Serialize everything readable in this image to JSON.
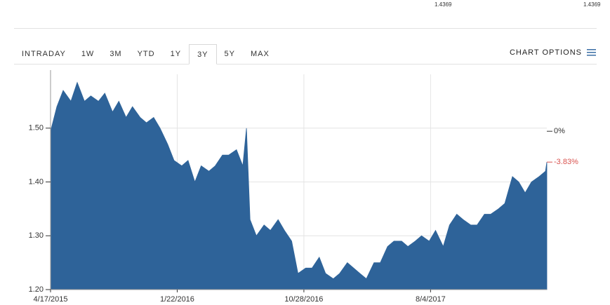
{
  "header": {
    "quotes": [
      "1.4369",
      "1.4369"
    ]
  },
  "tabs": [
    "INTRADAY",
    "1W",
    "3M",
    "YTD",
    "1Y",
    "3Y",
    "5Y",
    "MAX"
  ],
  "selected_tab": "3Y",
  "chart_options": "CHART OPTIONS",
  "chart_data": {
    "type": "area",
    "color": "#2e6399",
    "x": [
      "2015-04-17",
      "2015-05-01",
      "2015-05-15",
      "2015-06-01",
      "2015-06-15",
      "2015-07-01",
      "2015-07-15",
      "2015-08-01",
      "2015-08-15",
      "2015-09-01",
      "2015-09-15",
      "2015-10-01",
      "2015-10-15",
      "2015-11-01",
      "2015-11-15",
      "2015-12-01",
      "2015-12-15",
      "2016-01-01",
      "2016-01-15",
      "2016-02-01",
      "2016-02-15",
      "2016-03-01",
      "2016-03-15",
      "2016-04-01",
      "2016-04-15",
      "2016-05-01",
      "2016-05-15",
      "2016-06-01",
      "2016-06-15",
      "2016-06-23",
      "2016-07-01",
      "2016-07-15",
      "2016-08-01",
      "2016-08-15",
      "2016-09-01",
      "2016-09-15",
      "2016-10-01",
      "2016-10-15",
      "2016-11-01",
      "2016-11-15",
      "2016-12-01",
      "2016-12-15",
      "2017-01-01",
      "2017-01-15",
      "2017-02-01",
      "2017-02-15",
      "2017-03-01",
      "2017-03-15",
      "2017-04-01",
      "2017-04-15",
      "2017-05-01",
      "2017-05-15",
      "2017-06-01",
      "2017-06-15",
      "2017-07-01",
      "2017-07-15",
      "2017-08-01",
      "2017-08-15",
      "2017-09-01",
      "2017-09-15",
      "2017-10-01",
      "2017-10-15",
      "2017-11-01",
      "2017-11-15",
      "2017-12-01",
      "2017-12-15",
      "2018-01-01",
      "2018-01-15",
      "2018-02-01",
      "2018-02-15",
      "2018-03-01",
      "2018-03-15",
      "2018-04-01",
      "2018-04-15",
      "2018-04-18"
    ],
    "values": [
      1.494,
      1.54,
      1.57,
      1.55,
      1.585,
      1.55,
      1.56,
      1.55,
      1.565,
      1.53,
      1.55,
      1.52,
      1.54,
      1.52,
      1.51,
      1.52,
      1.5,
      1.47,
      1.44,
      1.43,
      1.44,
      1.4,
      1.43,
      1.42,
      1.43,
      1.45,
      1.45,
      1.46,
      1.43,
      1.5,
      1.33,
      1.3,
      1.32,
      1.31,
      1.33,
      1.31,
      1.29,
      1.23,
      1.24,
      1.24,
      1.26,
      1.23,
      1.22,
      1.23,
      1.25,
      1.24,
      1.23,
      1.22,
      1.25,
      1.25,
      1.28,
      1.29,
      1.29,
      1.28,
      1.29,
      1.3,
      1.29,
      1.31,
      1.28,
      1.32,
      1.34,
      1.33,
      1.32,
      1.32,
      1.34,
      1.34,
      1.35,
      1.36,
      1.41,
      1.4,
      1.38,
      1.4,
      1.41,
      1.42,
      1.4369
    ],
    "xlim": [
      "2015-04-17",
      "2018-04-18"
    ],
    "xticks": [
      {
        "value": "2015-04-17",
        "label": "4/17/2015"
      },
      {
        "value": "2016-01-22",
        "label": "1/22/2016"
      },
      {
        "value": "2016-10-28",
        "label": "10/28/2016"
      },
      {
        "value": "2017-08-04",
        "label": "8/4/2017"
      }
    ],
    "ylim": [
      1.2,
      1.6
    ],
    "yticks": [
      {
        "value": 1.2,
        "label": "1.20"
      },
      {
        "value": 1.3,
        "label": "1.30"
      },
      {
        "value": 1.4,
        "label": "1.40"
      },
      {
        "value": 1.5,
        "label": "1.50"
      }
    ],
    "grid": true,
    "annotations": [
      {
        "label": "0%",
        "value": 1.4942,
        "color": "#333333"
      },
      {
        "label": "-3.83%",
        "value": 1.4369,
        "color": "#d9534f"
      }
    ]
  }
}
